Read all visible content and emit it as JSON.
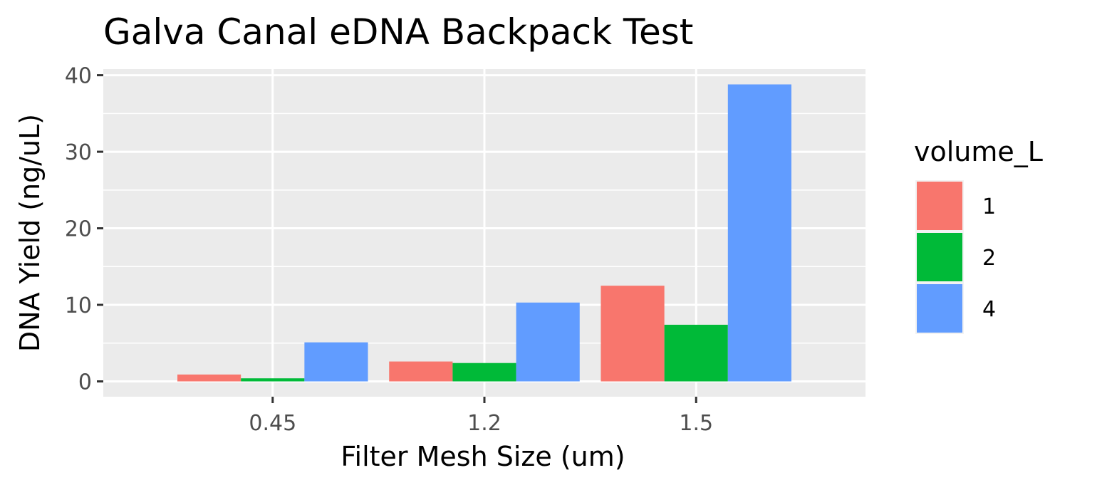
{
  "chart_data": {
    "type": "bar",
    "title": "Galva Canal eDNA Backpack Test",
    "xlabel": "Filter Mesh Size (um)",
    "ylabel": "DNA Yield (ng/uL)",
    "categories": [
      "0.45",
      "1.2",
      "1.5"
    ],
    "series": [
      {
        "name": "1",
        "color": "#F8766D",
        "values": [
          0.9,
          2.6,
          12.5
        ]
      },
      {
        "name": "2",
        "color": "#00BA38",
        "values": [
          0.4,
          2.4,
          7.4
        ]
      },
      {
        "name": "4",
        "color": "#619CFF",
        "values": [
          5.1,
          10.3,
          38.8
        ]
      }
    ],
    "ylim": [
      -2,
      40.8
    ],
    "yticks": [
      0,
      10,
      20,
      30,
      40
    ],
    "ytick_labels": [
      "0",
      "10",
      "20",
      "30",
      "40"
    ],
    "legend": {
      "title": "volume_L",
      "placement": "right"
    },
    "grid": true
  }
}
